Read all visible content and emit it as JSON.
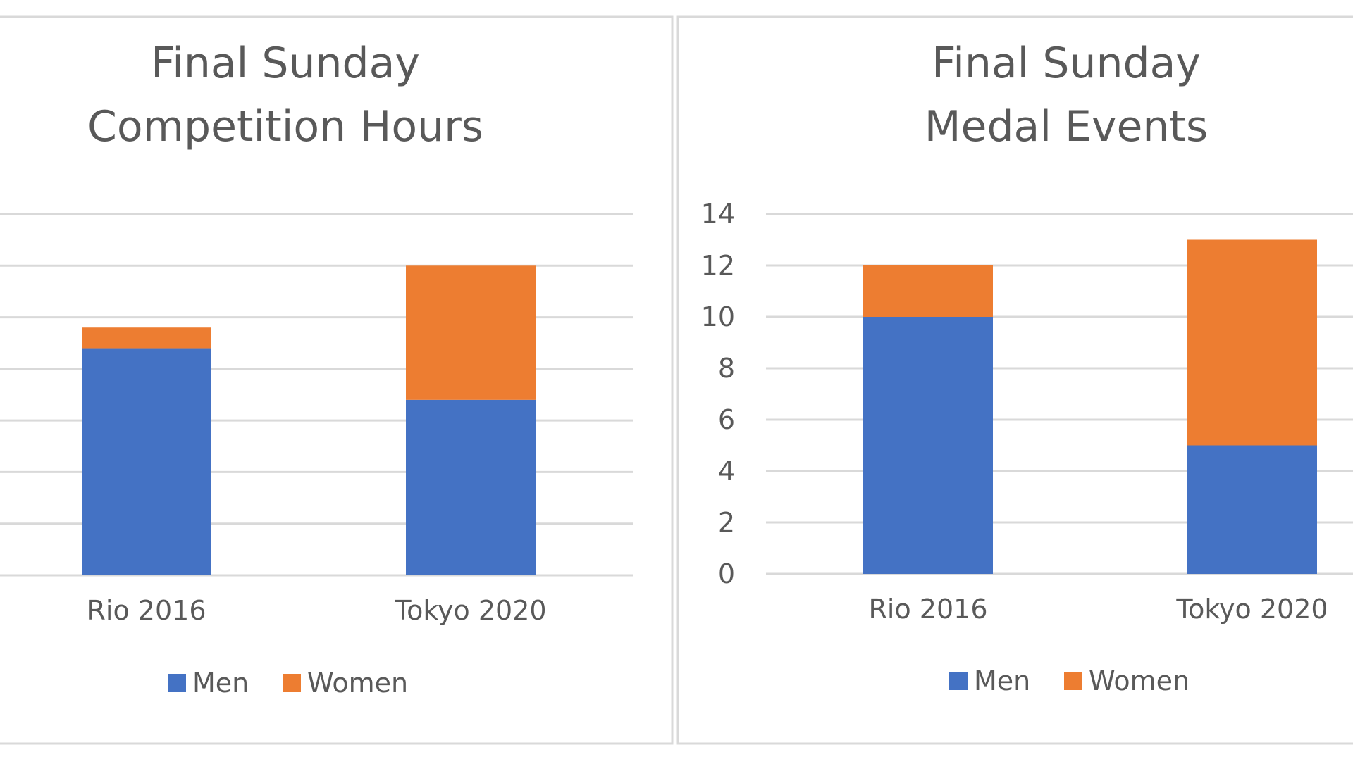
{
  "chart_data": [
    {
      "type": "bar",
      "stacked": true,
      "title_lines": [
        "Final Sunday",
        "Competition Hours"
      ],
      "categories": [
        "Rio 2016",
        "Tokyo 2020"
      ],
      "series": [
        {
          "name": "Men",
          "color": "#4472C4",
          "values": [
            8.8,
            6.8
          ]
        },
        {
          "name": "Women",
          "color": "#ED7D31",
          "values": [
            0.8,
            5.2
          ]
        }
      ],
      "ylim": [
        0,
        14
      ],
      "ytick_values": [
        0,
        2,
        4,
        6,
        8,
        10,
        12,
        14
      ],
      "ytick_labels_visible": false,
      "grid": true,
      "legend_position": "bottom"
    },
    {
      "type": "bar",
      "stacked": true,
      "title_lines": [
        "Final Sunday",
        "Medal Events"
      ],
      "categories": [
        "Rio 2016",
        "Tokyo 2020"
      ],
      "series": [
        {
          "name": "Men",
          "color": "#4472C4",
          "values": [
            10,
            5
          ]
        },
        {
          "name": "Women",
          "color": "#ED7D31",
          "values": [
            2,
            8
          ]
        }
      ],
      "ylim": [
        0,
        14
      ],
      "ytick_values": [
        0,
        2,
        4,
        6,
        8,
        10,
        12,
        14
      ],
      "ytick_labels": [
        "0",
        "2",
        "4",
        "6",
        "8",
        "10",
        "12",
        "14"
      ],
      "ytick_labels_visible": true,
      "grid": true,
      "legend_position": "bottom"
    }
  ]
}
